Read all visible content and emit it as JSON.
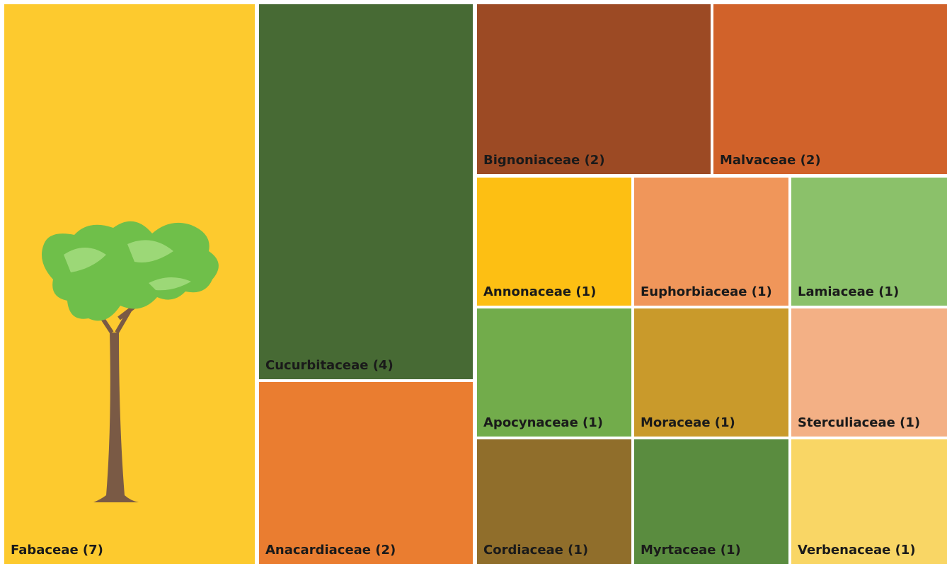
{
  "chart_data": {
    "type": "treemap",
    "categories": [
      "Fabaceae (7)",
      "Cucurbitaceae (4)",
      "Anacardiaceae (2)",
      "Bignoniaceae (2)",
      "Malvaceae (2)",
      "Annonaceae (1)",
      "Euphorbiaceae (1)",
      "Lamiaceae (1)",
      "Apocynaceae (1)",
      "Moraceae (1)",
      "Sterculiaceae (1)",
      "Cordiaceae (1)",
      "Myrtaceae (1)",
      "Verbenaceae (1)"
    ],
    "values": [
      7,
      4,
      2,
      2,
      2,
      1,
      1,
      1,
      1,
      1,
      1,
      1,
      1,
      1
    ],
    "colors": [
      "#fdca2e",
      "#476a34",
      "#ea7d30",
      "#9c4a24",
      "#d1622a",
      "#fdbf13",
      "#f0965a",
      "#8bc16a",
      "#72ac4b",
      "#c99a2b",
      "#f3b085",
      "#906e2b",
      "#5a8c3f",
      "#f9d665"
    ]
  }
}
